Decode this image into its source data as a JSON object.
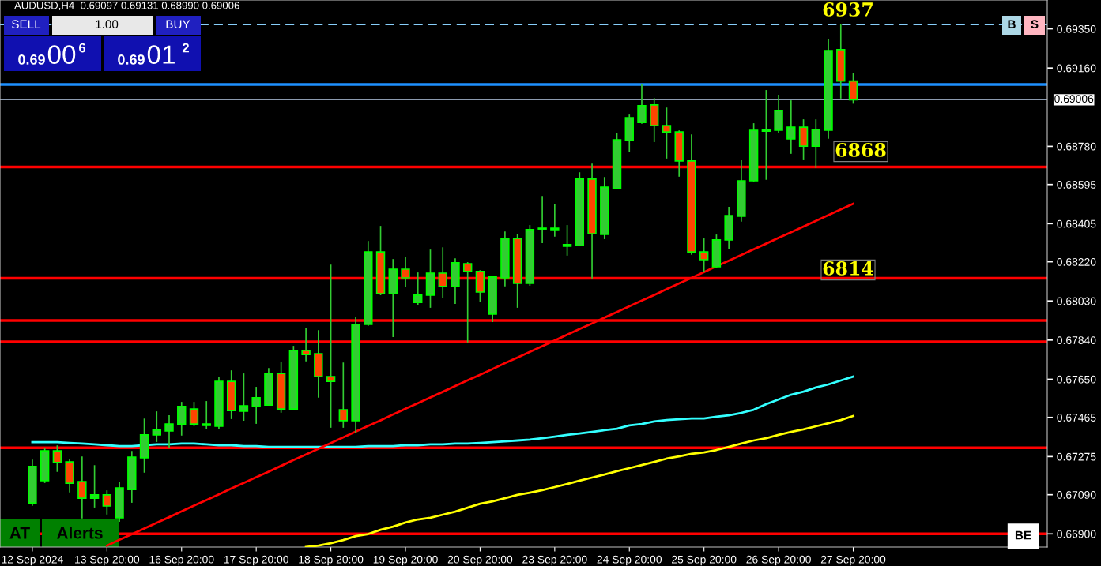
{
  "chart_data": {
    "type": "candlestick",
    "title": "AUDUSD,H4  0.69097 0.69131 0.68990 0.69006",
    "categories": [
      "12 Sep 2024",
      null,
      null,
      null,
      null,
      null,
      "13 Sep 20:00",
      null,
      null,
      null,
      null,
      null,
      "16 Sep 20:00",
      null,
      null,
      null,
      null,
      null,
      "17 Sep 20:00",
      null,
      null,
      null,
      null,
      null,
      "18 Sep 20:00",
      null,
      null,
      null,
      null,
      null,
      "19 Sep 20:00",
      null,
      null,
      null,
      null,
      null,
      "20 Sep 20:00",
      null,
      null,
      null,
      null,
      null,
      "23 Sep 20:00",
      null,
      null,
      null,
      null,
      null,
      "24 Sep 20:00",
      null,
      null,
      null,
      null,
      null,
      "25 Sep 20:00",
      null,
      null,
      null,
      null,
      null,
      "26 Sep 20:00",
      null,
      null,
      null,
      null,
      null,
      "27 Sep 20:00"
    ],
    "ohlc": [
      [
        0.6705,
        0.67257,
        0.67039,
        0.67227
      ],
      [
        0.67158,
        0.67311,
        0.6715,
        0.67303
      ],
      [
        0.67303,
        0.67326,
        0.67204,
        0.67246
      ],
      [
        0.67249,
        0.67261,
        0.67104,
        0.67146
      ],
      [
        0.67154,
        0.67272,
        0.66978,
        0.67073
      ],
      [
        0.67073,
        0.6723,
        0.67031,
        0.67089
      ],
      [
        0.67089,
        0.67108,
        0.66997,
        0.67035
      ],
      [
        0.66978,
        0.6715,
        0.66962,
        0.67123
      ],
      [
        0.67115,
        0.67299,
        0.67054,
        0.67272
      ],
      [
        0.67269,
        0.67456,
        0.672,
        0.6738
      ],
      [
        0.6738,
        0.67491,
        0.67349,
        0.67403
      ],
      [
        0.67399,
        0.67472,
        0.67318,
        0.67433
      ],
      [
        0.67433,
        0.67537,
        0.6738,
        0.67518
      ],
      [
        0.67506,
        0.67537,
        0.67426,
        0.67433
      ],
      [
        0.67433,
        0.67541,
        0.6741,
        0.67426
      ],
      [
        0.67422,
        0.67659,
        0.67414,
        0.6764
      ],
      [
        0.6764,
        0.6769,
        0.6746,
        0.67498
      ],
      [
        0.67495,
        0.67675,
        0.67452,
        0.67521
      ],
      [
        0.67518,
        0.6761,
        0.67437,
        0.6756
      ],
      [
        0.67525,
        0.67701,
        0.67525,
        0.67678
      ],
      [
        0.67678,
        0.67732,
        0.67491,
        0.67506
      ],
      [
        0.67506,
        0.67809,
        0.67502,
        0.6779
      ],
      [
        0.6779,
        0.67897,
        0.6774,
        0.6777
      ],
      [
        0.67774,
        0.67885,
        0.67564,
        0.67663
      ],
      [
        0.67663,
        0.68203,
        0.67418,
        0.6764
      ],
      [
        0.67502,
        0.67728,
        0.67418,
        0.67449
      ],
      [
        0.67449,
        0.67947,
        0.67391,
        0.67916
      ],
      [
        0.67916,
        0.68318,
        0.67912,
        0.68268
      ],
      [
        0.68268,
        0.68391,
        0.68061,
        0.68065
      ],
      [
        0.68065,
        0.6823,
        0.67858,
        0.68184
      ],
      [
        0.68184,
        0.68241,
        0.681,
        0.68142
      ],
      [
        0.68023,
        0.68165,
        0.68015,
        0.68058
      ],
      [
        0.68058,
        0.68276,
        0.68,
        0.68165
      ],
      [
        0.68165,
        0.68287,
        0.68046,
        0.681
      ],
      [
        0.681,
        0.68234,
        0.68019,
        0.68215
      ],
      [
        0.68211,
        0.68215,
        0.67832,
        0.68173
      ],
      [
        0.68173,
        0.68176,
        0.68027,
        0.68073
      ],
      [
        0.67966,
        0.6815,
        0.67931,
        0.68146
      ],
      [
        0.68142,
        0.68364,
        0.68104,
        0.68333
      ],
      [
        0.68333,
        0.68353,
        0.68,
        0.68115
      ],
      [
        0.68115,
        0.68395,
        0.68107,
        0.68376
      ],
      [
        0.68379,
        0.68536,
        0.68314,
        0.68383
      ],
      [
        0.68383,
        0.68498,
        0.68345,
        0.68376
      ],
      [
        0.68295,
        0.68395,
        0.68253,
        0.68303
      ],
      [
        0.68299,
        0.68651,
        0.68299,
        0.68621
      ],
      [
        0.68621,
        0.68693,
        0.68142,
        0.68356
      ],
      [
        0.68353,
        0.68628,
        0.68333,
        0.68582
      ],
      [
        0.68575,
        0.68843,
        0.68575,
        0.68812
      ],
      [
        0.68808,
        0.68931,
        0.68755,
        0.68919
      ],
      [
        0.68896,
        0.6908,
        0.68893,
        0.68977
      ],
      [
        0.68981,
        0.69011,
        0.68804,
        0.68881
      ],
      [
        0.68881,
        0.68965,
        0.68724,
        0.6885
      ],
      [
        0.6885,
        0.68854,
        0.68636,
        0.68709
      ],
      [
        0.68709,
        0.68835,
        0.68257,
        0.68268
      ],
      [
        0.68268,
        0.6833,
        0.68176,
        0.6823
      ],
      [
        0.68196,
        0.68349,
        0.68196,
        0.68326
      ],
      [
        0.68326,
        0.68483,
        0.68284,
        0.68444
      ],
      [
        0.68441,
        0.68709,
        0.68418,
        0.68613
      ],
      [
        0.68613,
        0.68889,
        0.68613,
        0.68858
      ],
      [
        0.68854,
        0.6905,
        0.68621,
        0.68862
      ],
      [
        0.68858,
        0.69027,
        0.68847,
        0.68954
      ],
      [
        0.68816,
        0.69,
        0.68747,
        0.68873
      ],
      [
        0.68873,
        0.68908,
        0.68716,
        0.68781
      ],
      [
        0.68781,
        0.68908,
        0.68678,
        0.68862
      ],
      [
        0.68858,
        0.69299,
        0.6882,
        0.69245
      ],
      [
        0.69249,
        0.6937,
        0.69015,
        0.69097
      ],
      [
        0.69097,
        0.69131,
        0.6899,
        0.69006
      ]
    ],
    "colors": [
      "#32cd32",
      "#32cd32",
      "#ff4500",
      "#ff4500",
      "#ff4500",
      "#32cd32",
      "#ff4500",
      "#32cd32",
      "#32cd32",
      "#32cd32",
      "#32cd32",
      "#32cd32",
      "#32cd32",
      "#ff4500",
      "#ff4500",
      "#32cd32",
      "#ff4500",
      "#32cd32",
      "#32cd32",
      "#32cd32",
      "#ff4500",
      "#32cd32",
      "#ff4500",
      "#ff4500",
      "#ff4500",
      "#ff4500",
      "#32cd32",
      "#32cd32",
      "#ff4500",
      "#32cd32",
      "#ff4500",
      "#32cd32",
      "#32cd32",
      "#ff4500",
      "#32cd32",
      "#ff4500",
      "#ff4500",
      "#32cd32",
      "#32cd32",
      "#ff4500",
      "#32cd32",
      "#32cd32",
      "#ff4500",
      "#32cd32",
      "#32cd32",
      "#ff4500",
      "#32cd32",
      "#32cd32",
      "#32cd32",
      "#32cd32",
      "#ff4500",
      "#ff4500",
      "#ff4500",
      "#ff4500",
      "#ff4500",
      "#32cd32",
      "#32cd32",
      "#32cd32",
      "#32cd32",
      "#32cd32",
      "#32cd32",
      "#32cd32",
      "#ff4500",
      "#32cd32",
      "#32cd32",
      "#ff4500",
      "#ff4500"
    ],
    "series": [
      {
        "type": "line",
        "color": "#33ffff",
        "values": [
          0.67345,
          0.67345,
          0.67345,
          0.67341,
          0.67338,
          0.67334,
          0.6733,
          0.67326,
          0.67326,
          0.6733,
          0.67334,
          0.67334,
          0.67338,
          0.67338,
          0.67334,
          0.6733,
          0.6733,
          0.67326,
          0.67326,
          0.67322,
          0.67322,
          0.67322,
          0.67322,
          0.67322,
          0.67322,
          0.67322,
          0.67322,
          0.67326,
          0.67326,
          0.67326,
          0.6733,
          0.6733,
          0.67334,
          0.67334,
          0.67338,
          0.67338,
          0.67341,
          0.67345,
          0.67349,
          0.67353,
          0.67357,
          0.67364,
          0.67372,
          0.6738,
          0.67387,
          0.67395,
          0.67403,
          0.6741,
          0.67426,
          0.67433,
          0.67445,
          0.67452,
          0.67456,
          0.6746,
          0.6746,
          0.67468,
          0.67475,
          0.67487,
          0.67502,
          0.67529,
          0.67552,
          0.67575,
          0.6759,
          0.6761,
          0.67625,
          0.67644,
          0.67663
        ]
      },
      {
        "type": "line",
        "color": "#ffff00",
        "values": [
          null,
          null,
          null,
          null,
          null,
          null,
          null,
          null,
          null,
          null,
          null,
          null,
          null,
          null,
          null,
          null,
          null,
          null,
          null,
          null,
          null,
          null,
          0.66836,
          0.66843,
          0.66855,
          0.6687,
          0.66889,
          0.66899,
          0.6692,
          0.66935,
          0.66955,
          0.6697,
          0.66978,
          0.66993,
          0.67008,
          0.67027,
          0.67046,
          0.67058,
          0.67073,
          0.67089,
          0.671,
          0.67112,
          0.67127,
          0.67142,
          0.67158,
          0.67173,
          0.67188,
          0.67204,
          0.67219,
          0.67234,
          0.67249,
          0.67265,
          0.67276,
          0.67288,
          0.67295,
          0.67307,
          0.67322,
          0.67338,
          0.67353,
          0.67364,
          0.6738,
          0.67395,
          0.67407,
          0.67422,
          0.67437,
          0.67452,
          0.67472
        ]
      },
      {
        "type": "line",
        "color": "#ff0000",
        "values": [
          null,
          null,
          null,
          null,
          null,
          null,
          0.66843,
          0.66871,
          0.66898,
          0.66926,
          0.66954,
          0.66981,
          0.67009,
          0.67037,
          0.67064,
          0.67092,
          0.6712,
          0.67147,
          0.67175,
          0.67202,
          0.6723,
          0.67258,
          0.67285,
          0.67313,
          0.67341,
          0.67368,
          0.67396,
          0.67424,
          0.67451,
          0.67479,
          0.67507,
          0.67534,
          0.67562,
          0.67589,
          0.67617,
          0.67645,
          0.67672,
          0.677,
          0.67728,
          0.67755,
          0.67783,
          0.67811,
          0.67838,
          0.67866,
          0.67894,
          0.67921,
          0.67949,
          0.67976,
          0.68004,
          0.68032,
          0.68059,
          0.68087,
          0.68115,
          0.68142,
          0.6817,
          0.68198,
          0.68225,
          0.68253,
          0.68281,
          0.68308,
          0.68336,
          0.68363,
          0.68391,
          0.68419,
          0.68446,
          0.68474,
          0.68502
        ]
      }
    ],
    "ylim": [
      0.66836,
      0.6949
    ],
    "yticks": [
      {
        "value": 0.6935,
        "label": "0.69350"
      },
      {
        "value": 0.6916,
        "label": "0.69160"
      },
      {
        "value": 0.6878,
        "label": "0.68780"
      },
      {
        "value": 0.68595,
        "label": "0.68595"
      },
      {
        "value": 0.68405,
        "label": "0.68405"
      },
      {
        "value": 0.6822,
        "label": "0.68220"
      },
      {
        "value": 0.6803,
        "label": "0.68030"
      },
      {
        "value": 0.6784,
        "label": "0.67840"
      },
      {
        "value": 0.6765,
        "label": "0.67650"
      },
      {
        "value": 0.67465,
        "label": "0.67465"
      },
      {
        "value": 0.67275,
        "label": "0.67275"
      },
      {
        "value": 0.6709,
        "label": "0.67090"
      },
      {
        "value": 0.669,
        "label": "0.66900"
      }
    ],
    "ref_lines": [
      {
        "axis": "y",
        "value": 0.6937,
        "color": "#87cefa",
        "line_style": "dashed"
      },
      {
        "axis": "y",
        "value": 0.6908,
        "color": "#1e90ff"
      },
      {
        "axis": "y",
        "value": 0.69006,
        "label": "0.69006",
        "color": "#8c9bb0"
      },
      {
        "axis": "y",
        "value": 0.6868,
        "color": "#ff0000"
      },
      {
        "axis": "y",
        "value": 0.6814,
        "color": "#ff0000"
      },
      {
        "axis": "y",
        "value": 0.67935,
        "color": "#ff0000"
      },
      {
        "axis": "y",
        "value": 0.67832,
        "color": "#ff0000"
      },
      {
        "axis": "y",
        "value": 0.67318,
        "color": "#ff0000"
      },
      {
        "axis": "y",
        "value": 0.669,
        "label": "BE",
        "color": "#ff0000"
      }
    ],
    "annotations": [
      "SELL",
      "1.00",
      "BUY",
      "0.69",
      "00",
      "6",
      "0.69",
      "01",
      "2",
      "AT",
      "Alerts",
      "B",
      "S",
      "6937",
      "6868",
      "6814"
    ],
    "grid": false,
    "legend": false
  }
}
